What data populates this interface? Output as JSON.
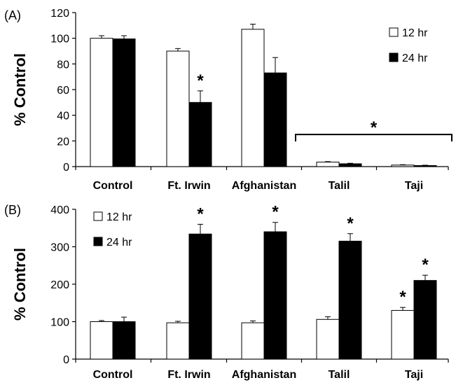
{
  "chart_data": [
    {
      "type": "bar",
      "panel_label": "(A)",
      "ylabel": "% Control",
      "ylim": [
        0,
        120
      ],
      "yticks": [
        "0",
        "20",
        "40",
        "60",
        "80",
        "100",
        "120"
      ],
      "categories": [
        "Control",
        "Ft. Irwin",
        "Afghanistan",
        "Talil",
        "Taji"
      ],
      "series": [
        {
          "name": "12 hr",
          "fill": "#ffffff",
          "values": [
            100,
            90,
            107,
            3.5,
            1.2
          ],
          "errors": [
            2,
            2,
            4,
            0.4,
            0.3
          ]
        },
        {
          "name": "24 hr",
          "fill": "#000000",
          "values": [
            99.5,
            50,
            73,
            2.2,
            0.8
          ],
          "errors": [
            2.5,
            9,
            12,
            0.4,
            0.3
          ]
        }
      ],
      "legend_position": "top-right",
      "annotations": [
        {
          "text": "*",
          "category": 1,
          "series": 1
        },
        {
          "text": "*",
          "type": "bracket",
          "from_category": 3,
          "to_category": 4,
          "y": 25
        }
      ]
    },
    {
      "type": "bar",
      "panel_label": "(B)",
      "ylabel": "% Control",
      "ylim": [
        0,
        400
      ],
      "yticks": [
        "0",
        "100",
        "200",
        "300",
        "400"
      ],
      "categories": [
        "Control",
        "Ft. Irwin",
        "Afghanistan",
        "Talil",
        "Taji"
      ],
      "series": [
        {
          "name": "12 hr",
          "fill": "#ffffff",
          "values": [
            100,
            97,
            97,
            106,
            130
          ],
          "errors": [
            3,
            4,
            5,
            7,
            8
          ]
        },
        {
          "name": "24 hr",
          "fill": "#000000",
          "values": [
            100,
            334,
            340,
            315,
            210
          ],
          "errors": [
            12,
            26,
            25,
            20,
            14
          ]
        }
      ],
      "legend_position": "top-left",
      "annotations": [
        {
          "text": "*",
          "category": 1,
          "series": 1
        },
        {
          "text": "*",
          "category": 2,
          "series": 1
        },
        {
          "text": "*",
          "category": 3,
          "series": 1
        },
        {
          "text": "*",
          "category": 4,
          "series": 0
        },
        {
          "text": "*",
          "category": 4,
          "series": 1
        }
      ]
    }
  ]
}
